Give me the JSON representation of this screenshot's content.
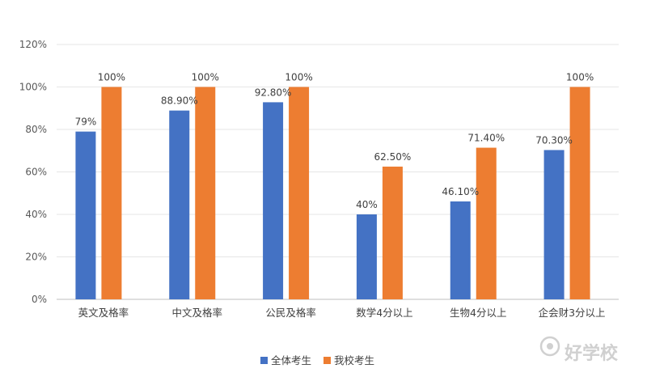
{
  "chart_data": {
    "type": "bar",
    "categories": [
      "英文及格率",
      "中文及格率",
      "公民及格率",
      "数学4分以上",
      "生物4分以上",
      "企会财3分以上"
    ],
    "series": [
      {
        "name": "全体考生",
        "color": "#4472C4",
        "values": [
          79,
          88.9,
          92.8,
          40,
          46.1,
          70.3
        ],
        "labels": [
          "79%",
          "88.90%",
          "92.80%",
          "40%",
          "46.10%",
          "70.30%"
        ]
      },
      {
        "name": "我校考生",
        "color": "#ED7D31",
        "values": [
          100,
          100,
          100,
          62.5,
          71.4,
          100
        ],
        "labels": [
          "100%",
          "100%",
          "100%",
          "62.50%",
          "71.40%",
          "100%"
        ]
      }
    ],
    "ylim": [
      0,
      120
    ],
    "yticks": [
      0,
      20,
      40,
      60,
      80,
      100,
      120
    ],
    "ytick_labels": [
      "0%",
      "20%",
      "40%",
      "60%",
      "80%",
      "100%",
      "120%"
    ],
    "grid": true,
    "legend_position": "bottom"
  },
  "watermark": {
    "text": "好学校",
    "icon": "logo-badge"
  }
}
